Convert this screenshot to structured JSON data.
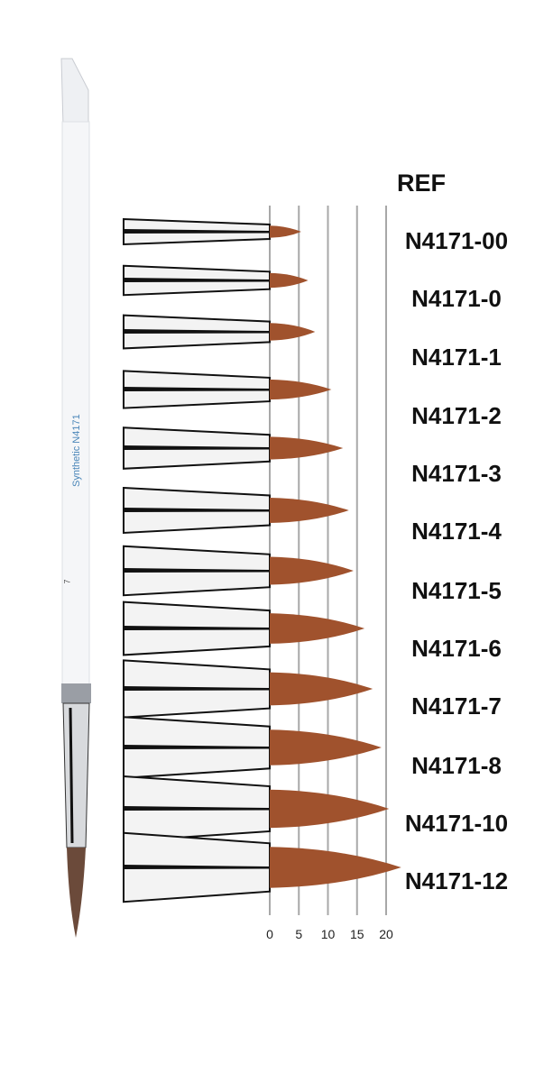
{
  "header": {
    "ref_label": "REF"
  },
  "handle": {
    "text": "Synthetic  N4171",
    "size": "7",
    "bristle_color": "#6b4a3a"
  },
  "scale": {
    "ticks": [
      "0",
      "5",
      "10",
      "15",
      "20"
    ],
    "tick_values": [
      0,
      5,
      10,
      15,
      20
    ]
  },
  "colors": {
    "bristle": "#a0522d",
    "gridline": "#a8a8a8",
    "handle_text": "#4a86b8"
  },
  "brushes": [
    {
      "ref": "N4171-00",
      "length": 5.4
    },
    {
      "ref": "N4171-0",
      "length": 6.6
    },
    {
      "ref": "N4171-1",
      "length": 7.8
    },
    {
      "ref": "N4171-2",
      "length": 10.6
    },
    {
      "ref": "N4171-3",
      "length": 12.6
    },
    {
      "ref": "N4171-4",
      "length": 13.6
    },
    {
      "ref": "N4171-5",
      "length": 14.4
    },
    {
      "ref": "N4171-6",
      "length": 16.3
    },
    {
      "ref": "N4171-7",
      "length": 17.7
    },
    {
      "ref": "N4171-8",
      "length": 19.2
    },
    {
      "ref": "N4171-10",
      "length": 20.5
    },
    {
      "ref": "N4171-12",
      "length": 22.6
    }
  ]
}
